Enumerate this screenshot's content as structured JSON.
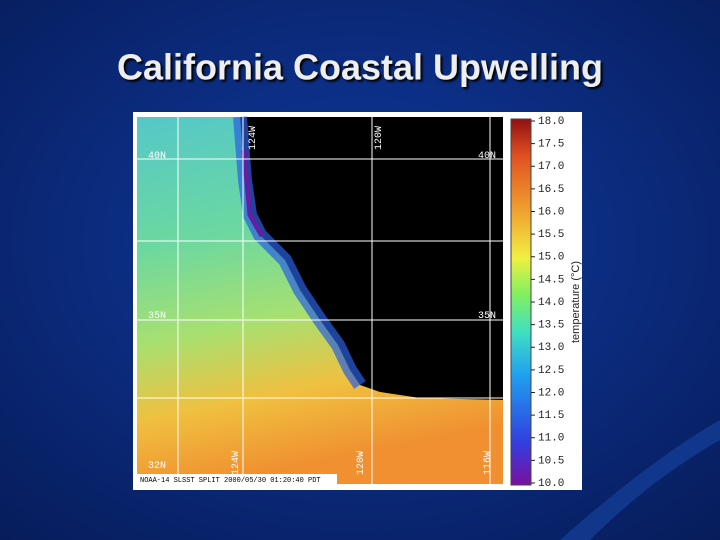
{
  "slide": {
    "title": "California Coastal Upwelling"
  },
  "map": {
    "labels": [
      "40N",
      "40N",
      "35N",
      "35N",
      "32N",
      "124W",
      "120W",
      "124W",
      "120W",
      "116W"
    ],
    "caption": "NOAA-14 SLSST SPLIT 2000/05/30 01:20:40 PDT"
  },
  "colorbar": {
    "label": "temperature (°C)",
    "range": [
      10,
      18
    ],
    "ticks": [
      {
        "value": 18,
        "label": "18.0"
      },
      {
        "value": 17.5,
        "label": "17.5"
      },
      {
        "value": 17,
        "label": "17.0"
      },
      {
        "value": 16.5,
        "label": "16.5"
      },
      {
        "value": 16,
        "label": "16.0"
      },
      {
        "value": 15.5,
        "label": "15.5"
      },
      {
        "value": 15,
        "label": "15.0"
      },
      {
        "value": 14.5,
        "label": "14.5"
      },
      {
        "value": 14,
        "label": "14.0"
      },
      {
        "value": 13.5,
        "label": "13.5"
      },
      {
        "value": 13,
        "label": "13.0"
      },
      {
        "value": 12.5,
        "label": "12.5"
      },
      {
        "value": 12,
        "label": "12.0"
      },
      {
        "value": 11.5,
        "label": "11.5"
      },
      {
        "value": 11,
        "label": "11.0"
      },
      {
        "value": 10.5,
        "label": "10.5"
      },
      {
        "value": 10,
        "label": "10.0"
      }
    ]
  }
}
